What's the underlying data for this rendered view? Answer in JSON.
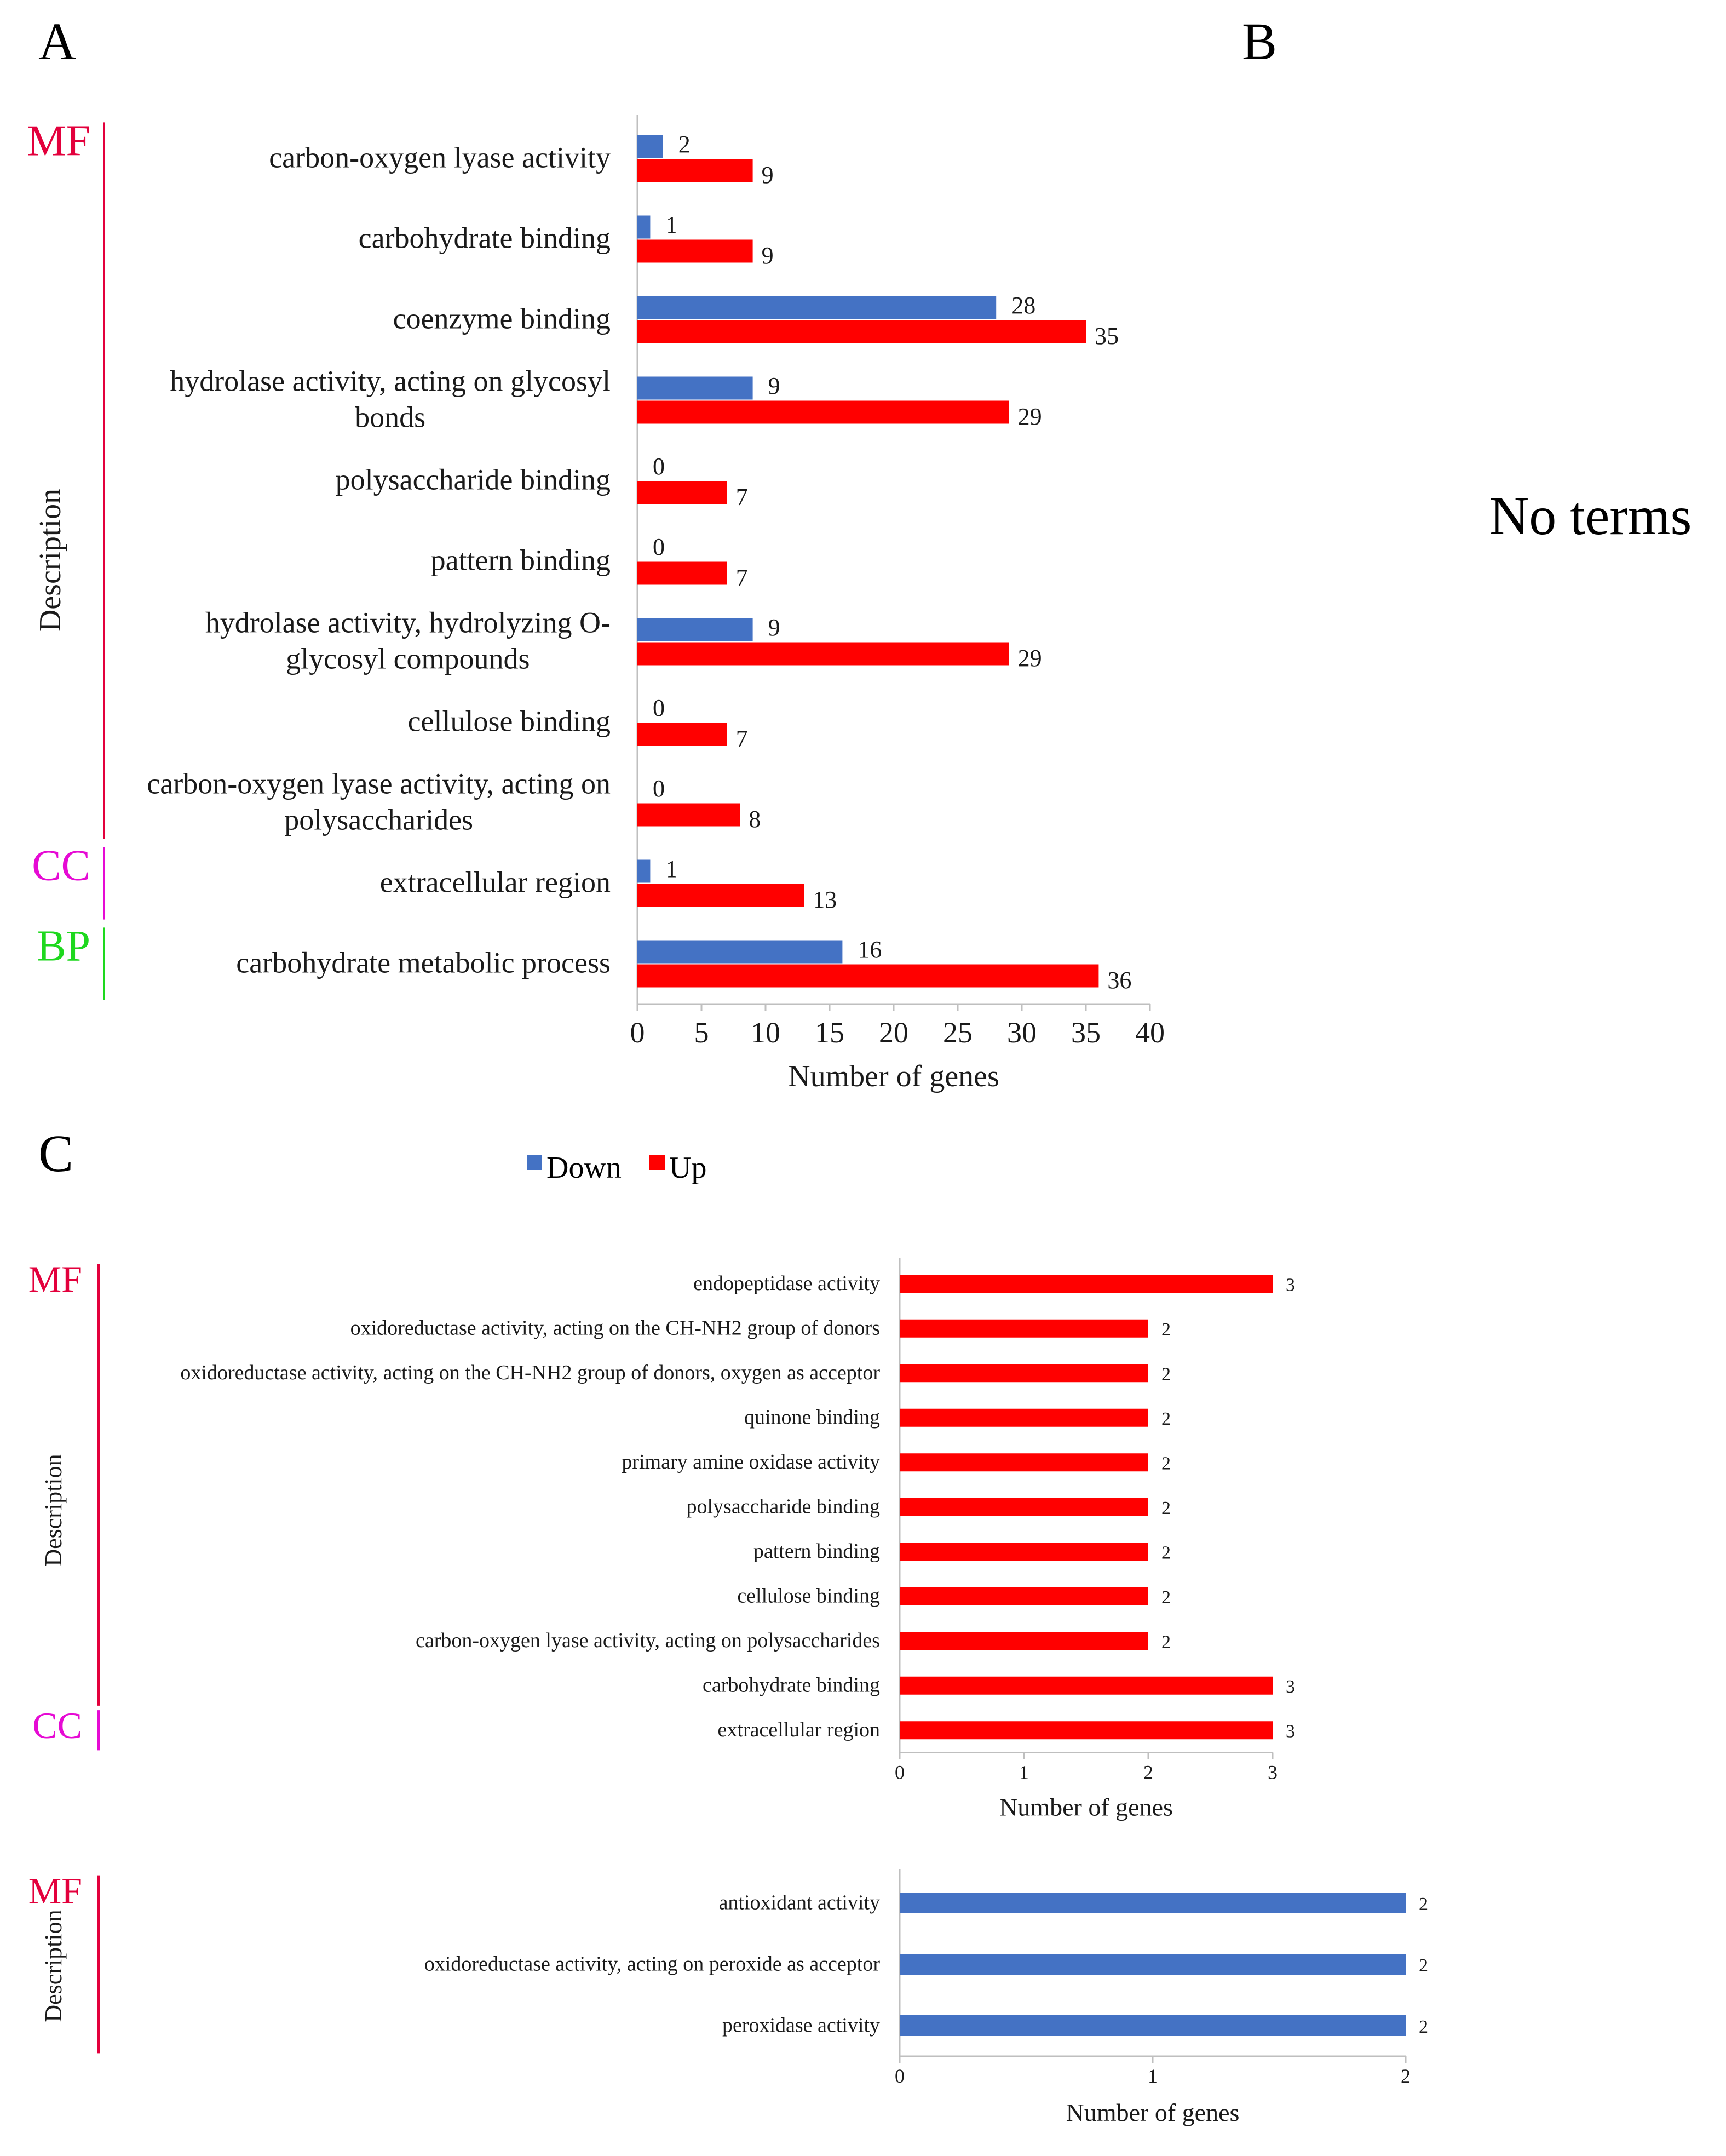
{
  "panel_labels": {
    "a": "A",
    "b": "B",
    "c": "C"
  },
  "panel_b_message": "No terms",
  "colors": {
    "down": "#4472C4",
    "up": "#FF0000",
    "mf": "#E3003C",
    "cc": "#E60AD4",
    "bp": "#1ED81E",
    "axis": "#BFBFBF",
    "text": "#1a1a1a"
  },
  "legend": {
    "down": "Down",
    "up": "Up"
  },
  "chart_data": [
    {
      "id": "panel-a",
      "type": "bar",
      "orientation": "horizontal",
      "categories": [
        "carbon-oxygen lyase activity",
        "carbohydrate binding",
        "coenzyme binding",
        "hydrolase activity, acting on glycosyl|bonds",
        "polysaccharide binding",
        "pattern binding",
        "hydrolase activity, hydrolyzing O-|glycosyl compounds",
        "cellulose binding",
        "carbon-oxygen lyase activity, acting on|polysaccharides",
        "extracellular region",
        "carbohydrate metabolic process"
      ],
      "series": [
        {
          "name": "Down",
          "values": [
            2,
            1,
            28,
            9,
            0,
            0,
            9,
            0,
            0,
            1,
            16
          ]
        },
        {
          "name": "Up",
          "values": [
            9,
            9,
            35,
            29,
            7,
            7,
            29,
            7,
            8,
            13,
            36
          ]
        }
      ],
      "xlim": [
        0,
        40
      ],
      "xticks": [
        0,
        5,
        10,
        15,
        20,
        25,
        30,
        35,
        40
      ],
      "xlabel": "Number of genes",
      "ylabel": "Description",
      "groups": [
        {
          "label": "MF",
          "start": 0,
          "end": 8
        },
        {
          "label": "CC",
          "start": 9,
          "end": 9
        },
        {
          "label": "BP",
          "start": 10,
          "end": 10
        }
      ]
    },
    {
      "id": "panel-c-up",
      "type": "bar",
      "orientation": "horizontal",
      "categories": [
        "endopeptidase activity",
        "oxidoreductase activity, acting on the CH-NH2 group of donors",
        "oxidoreductase activity, acting on the CH-NH2 group of donors, oxygen as acceptor",
        "quinone binding",
        "primary amine oxidase activity",
        "polysaccharide binding",
        "pattern binding",
        "cellulose binding",
        "carbon-oxygen lyase activity, acting on polysaccharides",
        "carbohydrate binding",
        "extracellular region"
      ],
      "series": [
        {
          "name": "Up",
          "values": [
            3,
            2,
            2,
            2,
            2,
            2,
            2,
            2,
            2,
            3,
            3
          ]
        }
      ],
      "xlim": [
        0,
        3
      ],
      "xticks": [
        0,
        1,
        2,
        3
      ],
      "xlabel": "Number of genes",
      "ylabel": "Description",
      "groups": [
        {
          "label": "MF",
          "start": 0,
          "end": 9
        },
        {
          "label": "CC",
          "start": 10,
          "end": 10
        }
      ]
    },
    {
      "id": "panel-c-down",
      "type": "bar",
      "orientation": "horizontal",
      "categories": [
        "antioxidant activity",
        "oxidoreductase activity, acting on peroxide as acceptor",
        "peroxidase activity"
      ],
      "series": [
        {
          "name": "Down",
          "values": [
            2,
            2,
            2
          ]
        }
      ],
      "xlim": [
        0,
        2
      ],
      "xticks": [
        0,
        1,
        2
      ],
      "xlabel": "Number of genes",
      "ylabel": "Description",
      "groups": [
        {
          "label": "MF",
          "start": 0,
          "end": 2
        }
      ]
    }
  ]
}
